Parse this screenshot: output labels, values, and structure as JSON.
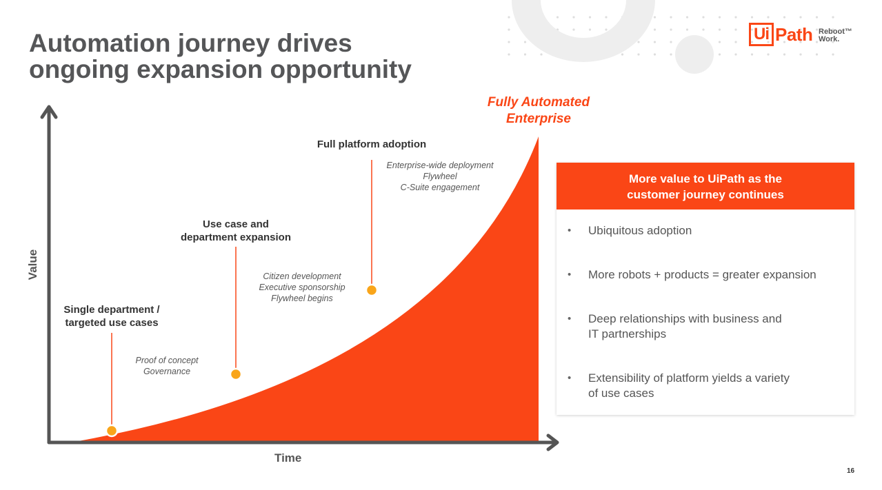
{
  "slide": {
    "title_lines": [
      "Automation journey drives",
      "ongoing expansion opportunity"
    ],
    "page_number": "16"
  },
  "logo": {
    "mark": "Ui",
    "name": "Path",
    "tagline_lines": [
      "Reboot™",
      "Work."
    ]
  },
  "chart": {
    "y_axis_label": "Value",
    "x_axis_label": "Time",
    "end_label_lines": [
      "Fully Automated",
      "Enterprise"
    ],
    "stages": [
      {
        "title_lines": [
          "Single department /",
          "targeted use cases"
        ],
        "note_lines": [
          "Proof of concept",
          "Governance"
        ]
      },
      {
        "title_lines": [
          "Use case and",
          "department expansion"
        ],
        "note_lines": [
          "Citizen development",
          "Executive sponsorship",
          "Flywheel begins"
        ]
      },
      {
        "title_lines": [
          "Full platform adoption"
        ],
        "note_lines": [
          "Enterprise-wide deployment",
          "Flywheel",
          "C-Suite engagement"
        ]
      }
    ]
  },
  "panel": {
    "header_lines": [
      "More value to UiPath as the",
      "customer journey continues"
    ],
    "items": [
      {
        "lines": [
          "Ubiquitous adoption"
        ]
      },
      {
        "lines": [
          "More robots + products = greater expansion"
        ]
      },
      {
        "lines": [
          "Deep relationships with business and",
          "IT partnerships"
        ]
      },
      {
        "lines": [
          "Extensibility of platform yields a variety",
          "of use cases"
        ]
      }
    ]
  },
  "colors": {
    "accent": "#fa4616",
    "marker": "#f9a51a",
    "axis": "#555555"
  }
}
